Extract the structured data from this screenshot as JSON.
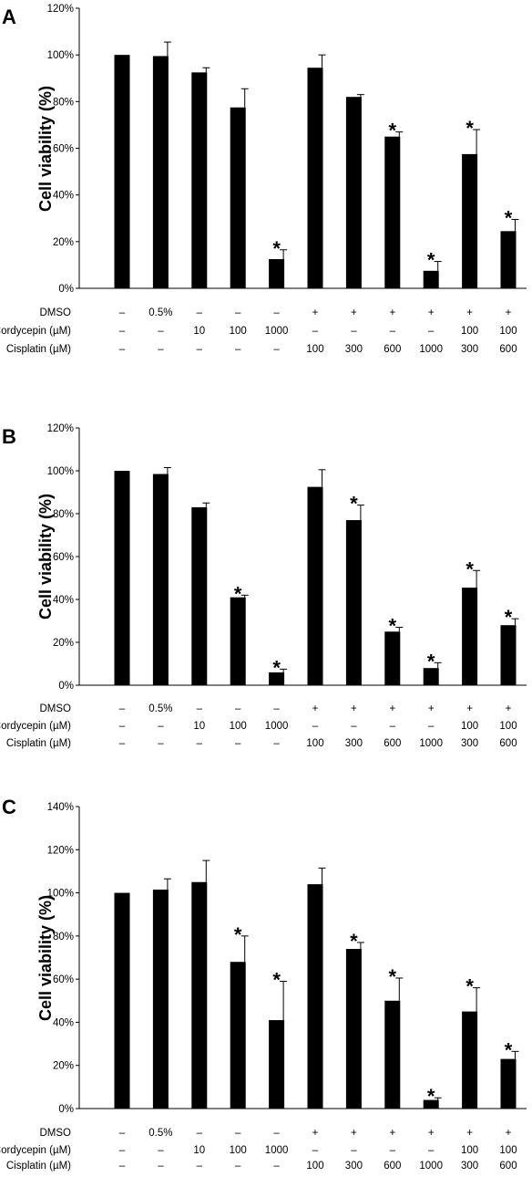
{
  "chart_data": [
    {
      "panel_label": "A",
      "type": "bar",
      "ylabel": "Cell viability (%)",
      "yticks": [
        "0%",
        "20%",
        "40%",
        "60%",
        "80%",
        "100%",
        "120%"
      ],
      "ylim": [
        0,
        120
      ],
      "values": [
        100,
        99.5,
        92.5,
        77.5,
        12.5,
        94.5,
        82,
        65,
        7.5,
        57.5,
        24.5
      ],
      "errors": [
        0,
        6,
        2,
        8,
        4,
        5.5,
        1,
        2,
        4,
        10.5,
        5
      ],
      "significant": [
        false,
        false,
        false,
        false,
        true,
        false,
        false,
        true,
        true,
        true,
        true
      ],
      "marker": "*",
      "conditions": [
        {
          "label": "DMSO",
          "values": [
            "–",
            "0.5%",
            "–",
            "–",
            "–",
            "+",
            "+",
            "+",
            "+",
            "+",
            "+"
          ]
        },
        {
          "label": "Cordycepin (µM)",
          "values": [
            "–",
            "–",
            "10",
            "100",
            "1000",
            "–",
            "–",
            "–",
            "–",
            "100",
            "100"
          ]
        },
        {
          "label": "Cisplatin (µM)",
          "values": [
            "–",
            "–",
            "–",
            "–",
            "–",
            "100",
            "300",
            "600",
            "1000",
            "300",
            "600"
          ]
        }
      ]
    },
    {
      "panel_label": "B",
      "type": "bar",
      "ylabel": "Cell viability (%)",
      "yticks": [
        "0%",
        "20%",
        "40%",
        "60%",
        "80%",
        "100%",
        "120%"
      ],
      "ylim": [
        0,
        120
      ],
      "values": [
        100,
        98.5,
        83,
        41,
        6,
        92.5,
        77,
        25,
        8,
        45.5,
        28
      ],
      "errors": [
        0,
        3,
        2,
        1,
        1.5,
        8,
        7,
        2,
        2.5,
        8,
        3
      ],
      "significant": [
        false,
        false,
        false,
        true,
        true,
        false,
        true,
        true,
        true,
        true,
        true
      ],
      "marker": "*",
      "conditions": [
        {
          "label": "DMSO",
          "values": [
            "–",
            "0.5%",
            "–",
            "–",
            "–",
            "+",
            "+",
            "+",
            "+",
            "+",
            "+"
          ]
        },
        {
          "label": "Cordycepin (µM)",
          "values": [
            "–",
            "–",
            "10",
            "100",
            "1000",
            "–",
            "–",
            "–",
            "–",
            "100",
            "100"
          ]
        },
        {
          "label": "Cisplatin (µM)",
          "values": [
            "–",
            "–",
            "–",
            "–",
            "–",
            "100",
            "300",
            "600",
            "1000",
            "300",
            "600"
          ]
        }
      ]
    },
    {
      "panel_label": "C",
      "type": "bar",
      "ylabel": "Cell viability (%)",
      "yticks": [
        "0%",
        "20%",
        "40%",
        "60%",
        "80%",
        "100%",
        "120%",
        "140%"
      ],
      "ylim": [
        0,
        140
      ],
      "values": [
        100,
        101.5,
        105,
        68,
        41,
        104,
        74,
        50,
        4,
        45,
        23
      ],
      "errors": [
        0,
        5,
        10,
        12,
        18,
        7.5,
        3,
        10.5,
        1,
        11,
        3.5
      ],
      "significant": [
        false,
        false,
        false,
        true,
        true,
        false,
        true,
        true,
        true,
        true,
        true
      ],
      "marker": "*",
      "conditions": [
        {
          "label": "DMSO",
          "values": [
            "–",
            "0.5%",
            "–",
            "–",
            "–",
            "+",
            "+",
            "+",
            "+",
            "+",
            "+"
          ]
        },
        {
          "label": "Cordycepin (µM)",
          "values": [
            "–",
            "–",
            "10",
            "100",
            "1000",
            "–",
            "–",
            "–",
            "–",
            "100",
            "100"
          ]
        },
        {
          "label": "Cisplatin (µM)",
          "values": [
            "–",
            "–",
            "–",
            "–",
            "–",
            "100",
            "300",
            "600",
            "1000",
            "300",
            "600"
          ]
        }
      ]
    }
  ]
}
